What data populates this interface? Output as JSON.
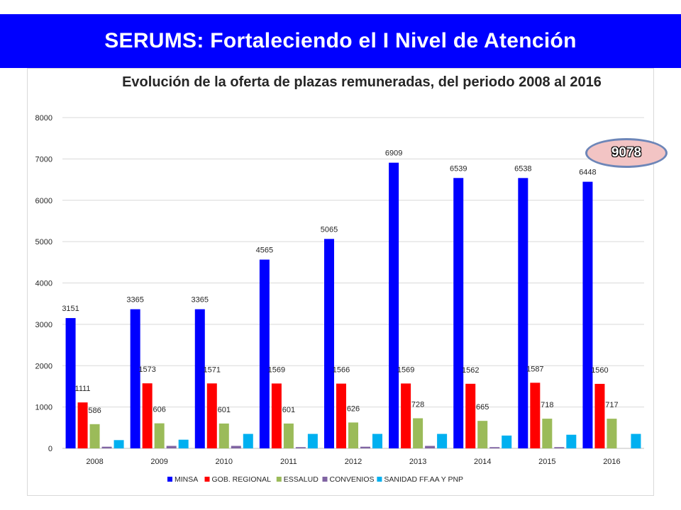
{
  "banner": {
    "title": "SERUMS: Fortaleciendo el I Nivel de Atención",
    "color": "#0000ff"
  },
  "callout": {
    "value": "9078",
    "fill": "#f2c4c4",
    "border": "#6d86b8"
  },
  "chart_data": {
    "type": "bar",
    "title": "Evolución de la oferta de plazas remuneradas, del periodo 2008 al 2016",
    "categories": [
      "2008",
      "2009",
      "2010",
      "2011",
      "2012",
      "2013",
      "2014",
      "2015",
      "2016"
    ],
    "ylim": [
      0,
      8000
    ],
    "yticks": [
      0,
      1000,
      2000,
      3000,
      4000,
      5000,
      6000,
      7000,
      8000
    ],
    "grid": true,
    "legend_position": "bottom",
    "series": [
      {
        "name": "MINSA",
        "color": "#0000ff",
        "values": [
          3151,
          3365,
          3365,
          4565,
          5065,
          6909,
          6539,
          6538,
          6448
        ],
        "labels": [
          "3151",
          "3365",
          "3365",
          "4565",
          "5065",
          "6909",
          "6539",
          "6538",
          "6448"
        ]
      },
      {
        "name": "GOB. REGIONAL",
        "color": "#ff0000",
        "values": [
          1111,
          1573,
          1571,
          1569,
          1566,
          1569,
          1562,
          1587,
          1560
        ],
        "labels": [
          "1111",
          "1573",
          "1571",
          "1569",
          "1566",
          "1569",
          "1562",
          "1587",
          "1560"
        ]
      },
      {
        "name": "ESSALUD",
        "color": "#9bbb59",
        "values": [
          586,
          606,
          601,
          601,
          626,
          728,
          665,
          718,
          717
        ],
        "labels": [
          "586",
          "606",
          "601",
          "601",
          "626",
          "728",
          "665",
          "718",
          "717"
        ]
      },
      {
        "name": "CONVENIOS",
        "color": "#8064a2",
        "values": [
          40,
          60,
          60,
          30,
          40,
          60,
          30,
          30,
          0
        ],
        "labels": [
          "",
          "",
          "",
          "",
          "",
          "",
          "",
          "",
          ""
        ]
      },
      {
        "name": "SANIDAD FF.AA Y PNP",
        "color": "#00b0f0",
        "values": [
          200,
          210,
          350,
          350,
          350,
          350,
          310,
          330,
          350
        ],
        "labels": [
          "",
          "",
          "",
          "",
          "",
          "",
          "",
          "",
          ""
        ]
      }
    ]
  }
}
